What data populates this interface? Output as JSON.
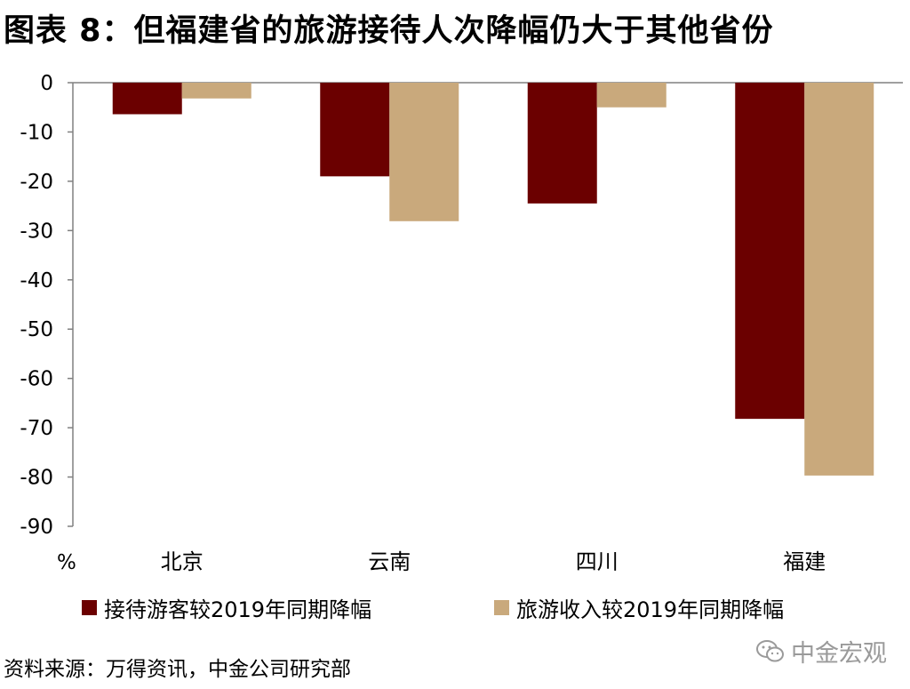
{
  "title": "图表 8：但福建省的旅游接待人次降幅仍大于其他省份",
  "source": "资料来源：万得资讯，中金公司研究部",
  "watermark": "中金宏观",
  "colors": {
    "series1": "#6b0000",
    "series2": "#c9a97c"
  },
  "chart_data": {
    "type": "bar",
    "categories": [
      "北京",
      "云南",
      "四川",
      "福建"
    ],
    "series": [
      {
        "name": "接待游客较2019年同期降幅",
        "values": [
          -6.4,
          -19.0,
          -24.5,
          -68.2
        ]
      },
      {
        "name": "旅游收入较2019年同期降幅",
        "values": [
          -3.2,
          -28.1,
          -5.0,
          -79.7
        ]
      }
    ],
    "ylabel": "%",
    "ylim": [
      -90,
      0
    ],
    "yticks": [
      0,
      -10,
      -20,
      -30,
      -40,
      -50,
      -60,
      -70,
      -80,
      -90
    ]
  }
}
